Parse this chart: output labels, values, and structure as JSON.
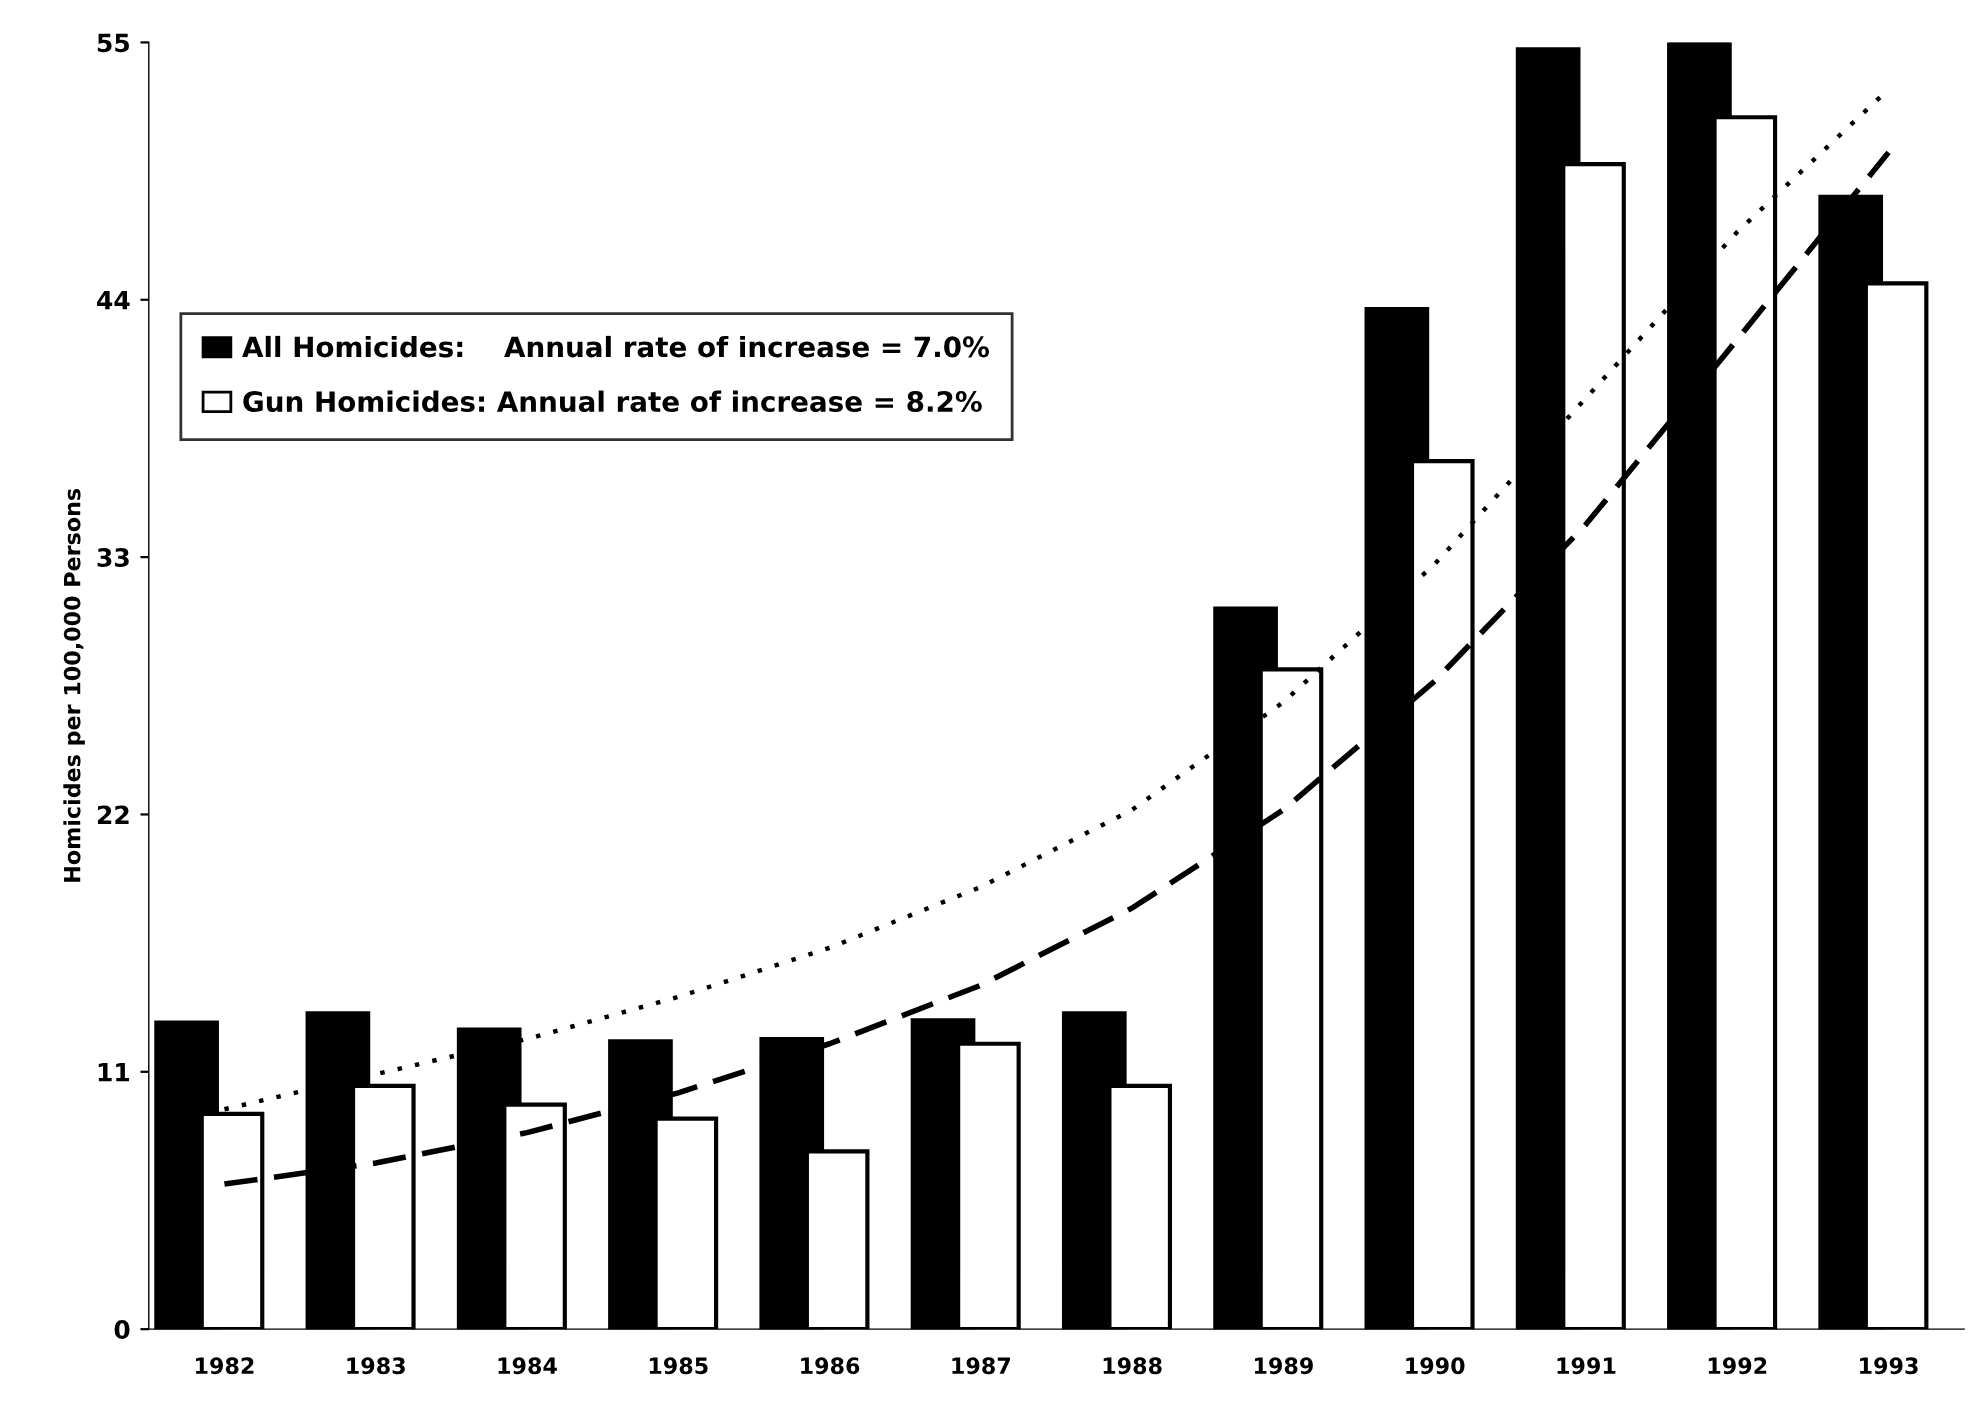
{
  "chart_data": {
    "type": "bar",
    "ylabel": "Homicides per 100,000 Persons",
    "categories": [
      "1982",
      "1983",
      "1984",
      "1985",
      "1986",
      "1987",
      "1988",
      "1989",
      "1990",
      "1991",
      "1992",
      "1993"
    ],
    "series": [
      {
        "name": "All Homicides:    Annual rate of increase = 7.0%",
        "color": "#000000",
        "values": [
          13.1,
          13.5,
          12.8,
          12.3,
          12.4,
          13.2,
          13.5,
          30.8,
          43.6,
          54.7,
          55.0,
          48.4
        ]
      },
      {
        "name": "Gun Homicides: Annual rate of increase = 8.2%",
        "color": "#ffffff",
        "values": [
          9.2,
          10.4,
          9.6,
          9.0,
          7.6,
          12.2,
          10.4,
          28.2,
          37.1,
          49.8,
          51.8,
          44.7
        ]
      },
      {
        "type": "line",
        "line_style": "dotted",
        "color": "#000000",
        "values": [
          9.4,
          10.9,
          12.4,
          14.2,
          16.3,
          18.9,
          22.2,
          26.8,
          32.7,
          39.8,
          46.9,
          53.0
        ]
      },
      {
        "type": "line",
        "line_style": "dashed",
        "color": "#000000",
        "values": [
          6.2,
          7.1,
          8.4,
          10.1,
          12.2,
          14.7,
          18.0,
          22.2,
          27.7,
          34.4,
          42.3,
          50.3
        ]
      }
    ],
    "ylim": [
      0,
      55
    ],
    "yticks": [
      0,
      11,
      22,
      33,
      44,
      55
    ],
    "grid": false,
    "legend": "top left",
    "marker": "none"
  }
}
